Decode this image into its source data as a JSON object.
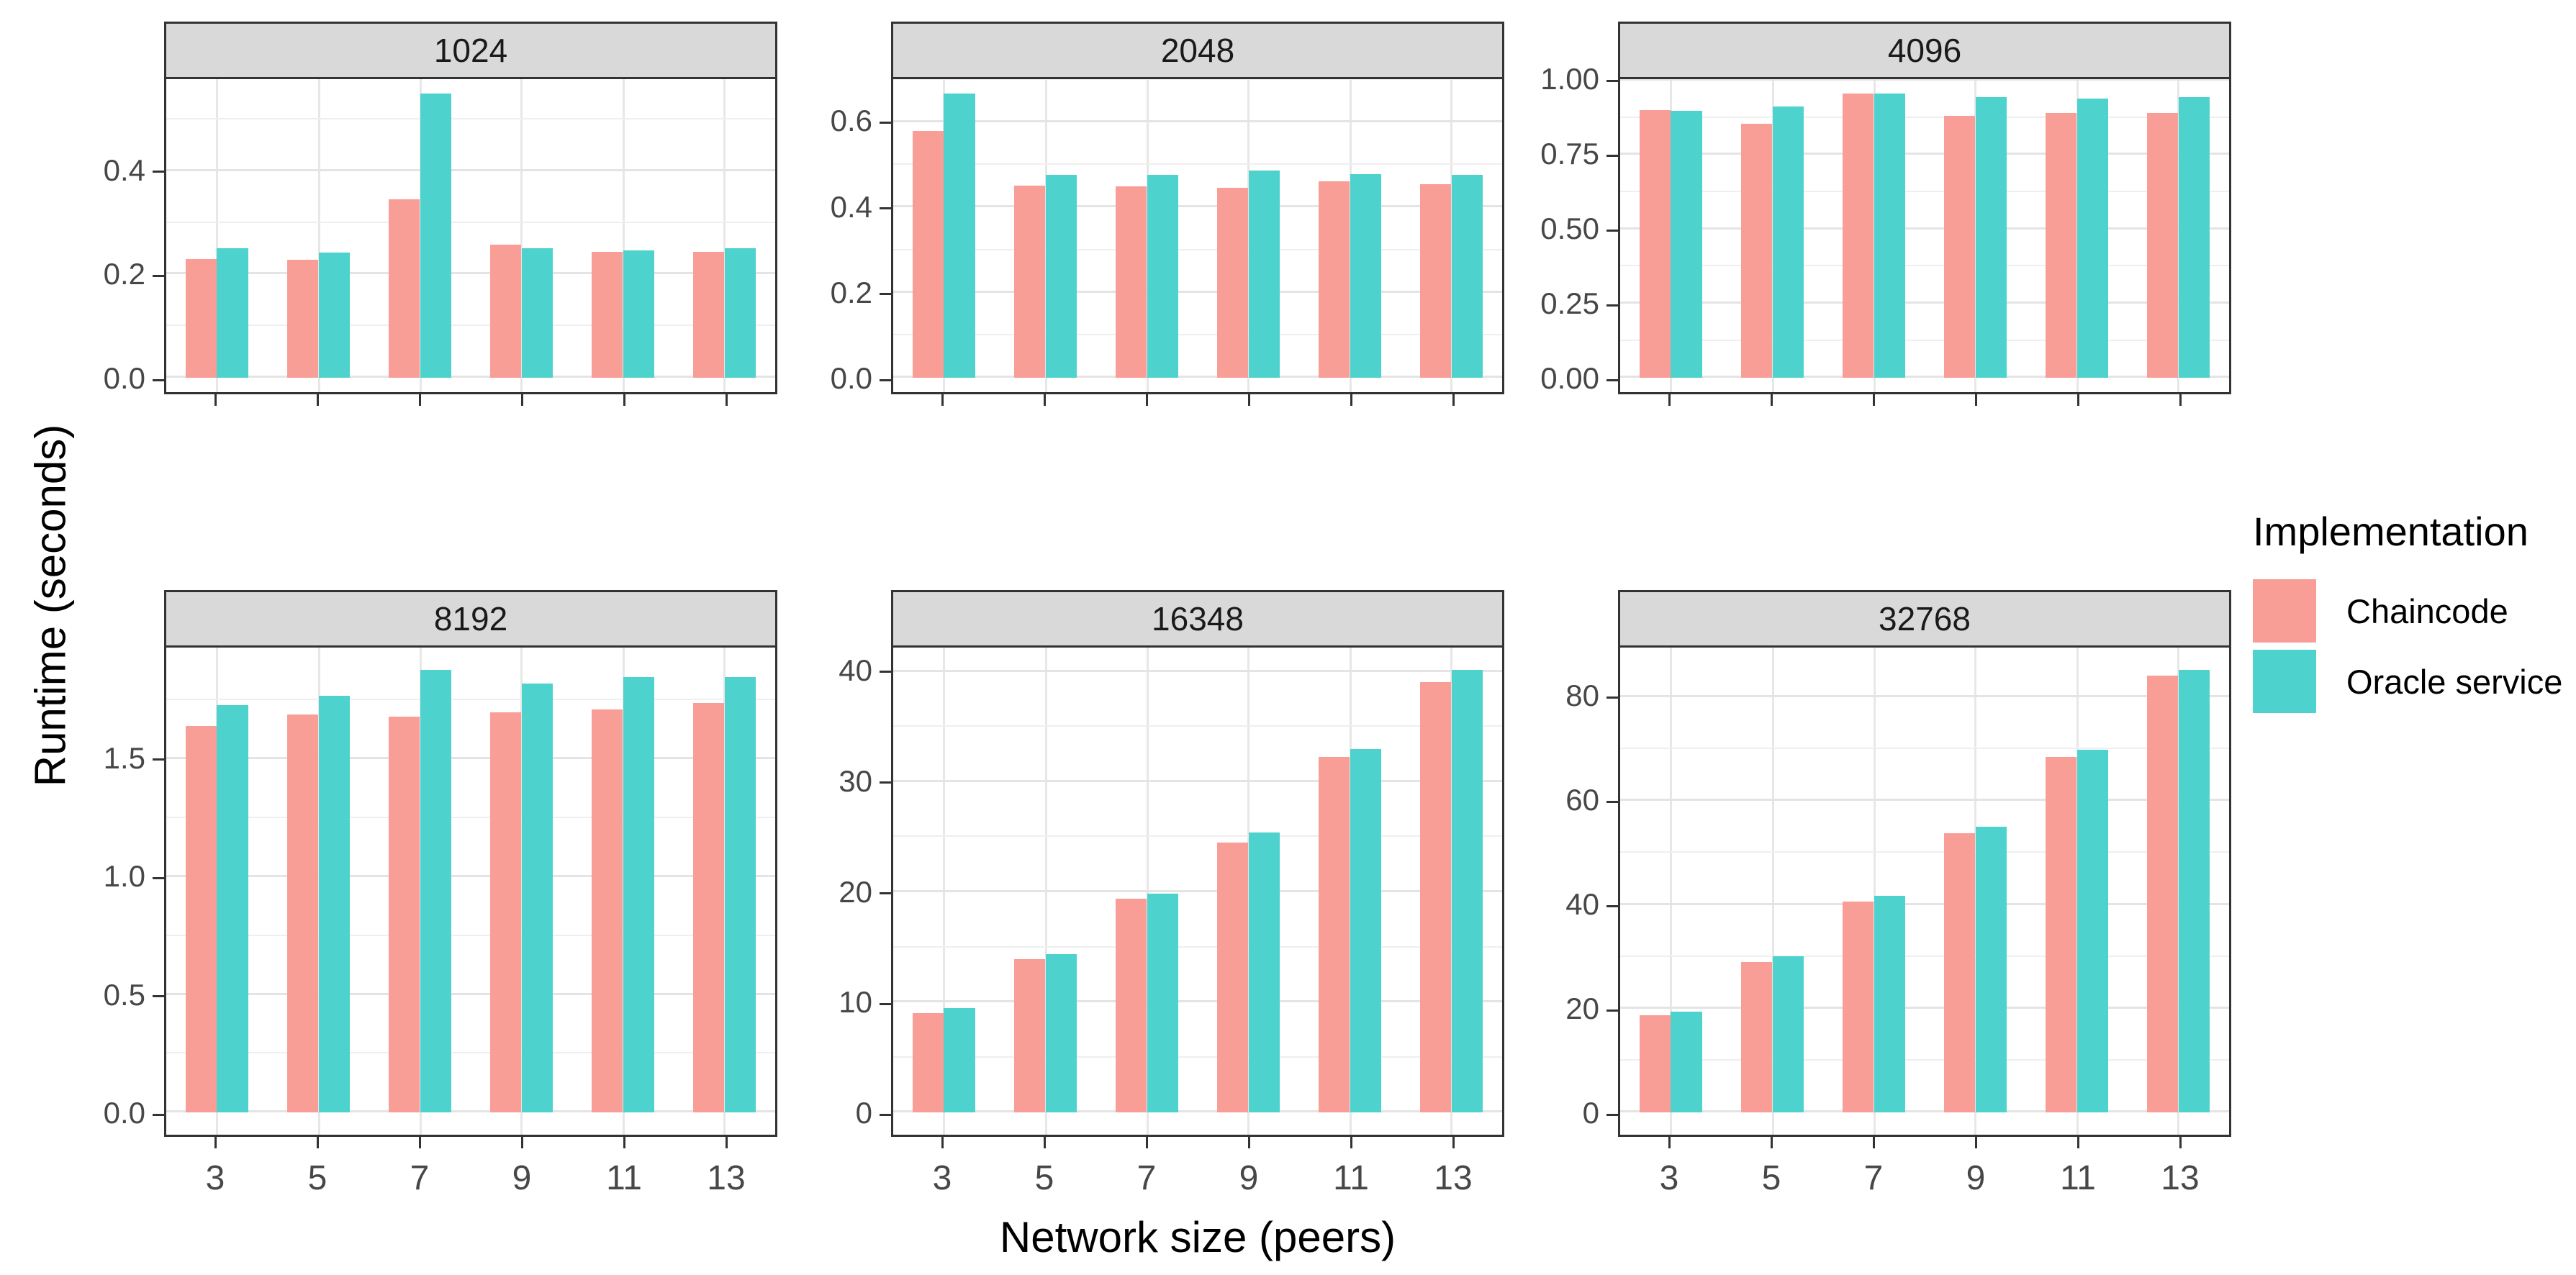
{
  "chart_data": {
    "type": "bar",
    "title": "",
    "xlabel": "Network size (peers)",
    "ylabel": "Runtime (seconds)",
    "legend_title": "Implementation",
    "legend_position": "right",
    "grid": "major and minor horizontal lines, vertical major lines at category centers",
    "categories": [
      "3",
      "5",
      "7",
      "9",
      "11",
      "13"
    ],
    "series_names": [
      "Chaincode",
      "Oracle service"
    ],
    "colors": {
      "chaincode": "#F99E97",
      "oracle_service": "#4DD2CE"
    },
    "style": {
      "strip_background": "#d9d9d9",
      "panel_border": "#333333",
      "major_grid": "#e4e4e4",
      "minor_grid": "#efefef",
      "tick_label_color": "#474747",
      "background": "#ffffff"
    },
    "facets": [
      {
        "label": "1024",
        "row": 0,
        "yticks": [
          {
            "v": 0.0,
            "label": "0.0"
          },
          {
            "v": 0.2,
            "label": "0.2"
          },
          {
            "v": 0.4,
            "label": "0.4"
          }
        ],
        "data_max": 0.55,
        "series": [
          {
            "name": "Chaincode",
            "values": [
              0.23,
              0.228,
              0.345,
              0.257,
              0.244,
              0.244
            ]
          },
          {
            "name": "Oracle service",
            "values": [
              0.251,
              0.242,
              0.55,
              0.25,
              0.246,
              0.25
            ]
          }
        ]
      },
      {
        "label": "2048",
        "row": 0,
        "yticks": [
          {
            "v": 0.0,
            "label": "0.0"
          },
          {
            "v": 0.2,
            "label": "0.2"
          },
          {
            "v": 0.4,
            "label": "0.4"
          },
          {
            "v": 0.6,
            "label": "0.6"
          }
        ],
        "data_max": 0.668,
        "series": [
          {
            "name": "Chaincode",
            "values": [
              0.58,
              0.451,
              0.45,
              0.447,
              0.461,
              0.454
            ]
          },
          {
            "name": "Oracle service",
            "values": [
              0.668,
              0.477,
              0.477,
              0.487,
              0.479,
              0.477
            ]
          }
        ]
      },
      {
        "label": "4096",
        "row": 0,
        "yticks": [
          {
            "v": 0.0,
            "label": "0.00"
          },
          {
            "v": 0.25,
            "label": "0.25"
          },
          {
            "v": 0.5,
            "label": "0.50"
          },
          {
            "v": 0.75,
            "label": "0.75"
          },
          {
            "v": 1.0,
            "label": "1.00"
          }
        ],
        "data_max": 0.957,
        "series": [
          {
            "name": "Chaincode",
            "values": [
              0.902,
              0.856,
              0.957,
              0.882,
              0.892,
              0.891
            ]
          },
          {
            "name": "Oracle service",
            "values": [
              0.898,
              0.912,
              0.957,
              0.944,
              0.939,
              0.944
            ]
          }
        ]
      },
      {
        "label": "8192",
        "row": 1,
        "yticks": [
          {
            "v": 0.0,
            "label": "0.0"
          },
          {
            "v": 0.5,
            "label": "0.5"
          },
          {
            "v": 1.0,
            "label": "1.0"
          },
          {
            "v": 1.5,
            "label": "1.5"
          }
        ],
        "data_max": 1.88,
        "series": [
          {
            "name": "Chaincode",
            "values": [
              1.64,
              1.69,
              1.68,
              1.7,
              1.71,
              1.74
            ]
          },
          {
            "name": "Oracle service",
            "values": [
              1.73,
              1.77,
              1.88,
              1.82,
              1.85,
              1.85
            ]
          }
        ]
      },
      {
        "label": "16348",
        "row": 1,
        "yticks": [
          {
            "v": 0,
            "label": "0"
          },
          {
            "v": 10,
            "label": "10"
          },
          {
            "v": 20,
            "label": "20"
          },
          {
            "v": 30,
            "label": "30"
          },
          {
            "v": 40,
            "label": "40"
          }
        ],
        "data_max": 40.2,
        "series": [
          {
            "name": "Chaincode",
            "values": [
              9.0,
              13.9,
              19.4,
              24.5,
              32.3,
              39.1
            ]
          },
          {
            "name": "Oracle service",
            "values": [
              9.5,
              14.4,
              19.9,
              25.4,
              33.0,
              40.2
            ]
          }
        ]
      },
      {
        "label": "32768",
        "row": 1,
        "yticks": [
          {
            "v": 0,
            "label": "0"
          },
          {
            "v": 20,
            "label": "20"
          },
          {
            "v": 40,
            "label": "40"
          },
          {
            "v": 60,
            "label": "60"
          },
          {
            "v": 80,
            "label": "80"
          }
        ],
        "data_max": 85.3,
        "series": [
          {
            "name": "Chaincode",
            "values": [
              18.8,
              29.0,
              40.6,
              53.8,
              68.5,
              84.2
            ]
          },
          {
            "name": "Oracle service",
            "values": [
              19.4,
              30.1,
              41.7,
              55.0,
              69.9,
              85.3
            ]
          }
        ]
      }
    ]
  }
}
